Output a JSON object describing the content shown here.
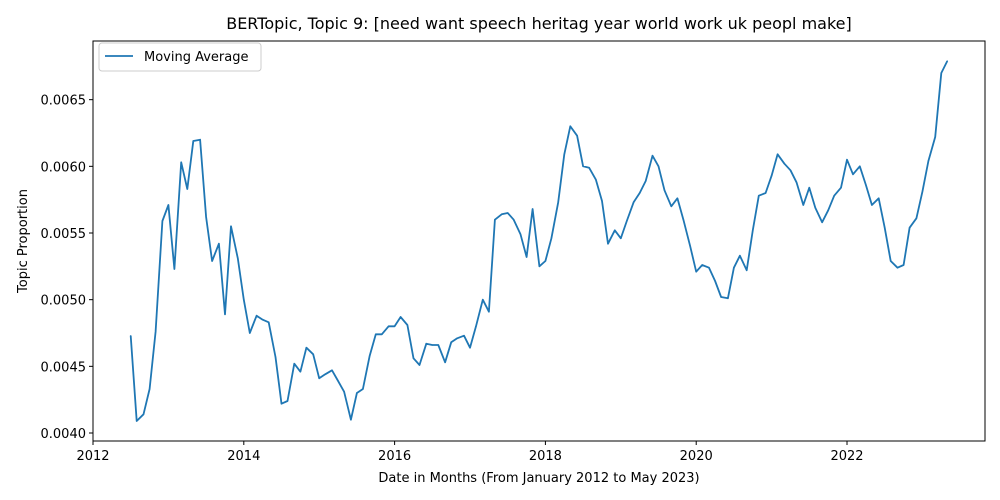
{
  "chart_data": {
    "type": "line",
    "title": "BERTopic, Topic 9: [need want speech heritag year world work uk peopl make]",
    "xlabel": "Date in Months (From January 2012 to May 2023)",
    "ylabel": "Topic Proportion",
    "xlim": [
      2012.0,
      2023.83
    ],
    "ylim": [
      0.00394,
      0.00694
    ],
    "xticks": [
      2012,
      2014,
      2016,
      2018,
      2020,
      2022
    ],
    "xtick_labels": [
      "2012",
      "2014",
      "2016",
      "2018",
      "2020",
      "2022"
    ],
    "yticks": [
      0.004,
      0.0045,
      0.005,
      0.0055,
      0.006,
      0.0065
    ],
    "ytick_labels": [
      "0.0040",
      "0.0045",
      "0.0050",
      "0.0055",
      "0.0060",
      "0.0065"
    ],
    "grid": false,
    "legend_position": "top-left",
    "colors": {
      "series": "#1f77b4"
    },
    "series": [
      {
        "name": "Moving Average",
        "x": [
          2012.5,
          2012.58,
          2012.67,
          2012.75,
          2012.83,
          2012.92,
          2013.0,
          2013.08,
          2013.17,
          2013.25,
          2013.33,
          2013.42,
          2013.5,
          2013.58,
          2013.67,
          2013.75,
          2013.83,
          2013.92,
          2014.0,
          2014.08,
          2014.17,
          2014.25,
          2014.33,
          2014.42,
          2014.5,
          2014.58,
          2014.67,
          2014.75,
          2014.83,
          2014.92,
          2015.0,
          2015.08,
          2015.17,
          2015.25,
          2015.33,
          2015.42,
          2015.5,
          2015.58,
          2015.67,
          2015.75,
          2015.83,
          2015.92,
          2016.0,
          2016.08,
          2016.17,
          2016.25,
          2016.33,
          2016.42,
          2016.5,
          2016.58,
          2016.67,
          2016.75,
          2016.83,
          2016.92,
          2017.0,
          2017.08,
          2017.17,
          2017.25,
          2017.33,
          2017.42,
          2017.5,
          2017.58,
          2017.67,
          2017.75,
          2017.83,
          2017.92,
          2018.0,
          2018.08,
          2018.17,
          2018.25,
          2018.33,
          2018.42,
          2018.5,
          2018.58,
          2018.67,
          2018.75,
          2018.83,
          2018.92,
          2019.0,
          2019.08,
          2019.17,
          2019.25,
          2019.33,
          2019.42,
          2019.5,
          2019.58,
          2019.67,
          2019.75,
          2019.83,
          2019.92,
          2020.0,
          2020.08,
          2020.17,
          2020.25,
          2020.33,
          2020.42,
          2020.5,
          2020.58,
          2020.67,
          2020.75,
          2020.83,
          2020.92,
          2021.0,
          2021.08,
          2021.17,
          2021.25,
          2021.33,
          2021.42,
          2021.5,
          2021.58,
          2021.67,
          2021.75,
          2021.83,
          2021.92,
          2022.0,
          2022.08,
          2022.17,
          2022.25,
          2022.33,
          2022.42,
          2022.5,
          2022.58,
          2022.67,
          2022.75,
          2022.83,
          2022.92,
          2023.0,
          2023.08,
          2023.17,
          2023.25,
          2023.33
        ],
        "y": [
          0.00473,
          0.00409,
          0.00414,
          0.00433,
          0.00476,
          0.00559,
          0.00571,
          0.00523,
          0.00603,
          0.00583,
          0.00619,
          0.0062,
          0.00562,
          0.00529,
          0.00542,
          0.00489,
          0.00555,
          0.00531,
          0.005,
          0.00475,
          0.00488,
          0.00485,
          0.00483,
          0.00457,
          0.00422,
          0.00424,
          0.00452,
          0.00446,
          0.00464,
          0.00459,
          0.00441,
          0.00444,
          0.00447,
          0.00439,
          0.00431,
          0.0041,
          0.0043,
          0.00433,
          0.00458,
          0.00474,
          0.00474,
          0.0048,
          0.0048,
          0.00487,
          0.00481,
          0.00456,
          0.00451,
          0.00467,
          0.00466,
          0.00466,
          0.00453,
          0.00468,
          0.00471,
          0.00473,
          0.00464,
          0.0048,
          0.005,
          0.00491,
          0.0056,
          0.00564,
          0.00565,
          0.0056,
          0.00549,
          0.00532,
          0.00568,
          0.00525,
          0.00529,
          0.00546,
          0.00573,
          0.00609,
          0.0063,
          0.00623,
          0.006,
          0.00599,
          0.0059,
          0.00574,
          0.00542,
          0.00552,
          0.00546,
          0.00559,
          0.00573,
          0.0058,
          0.00589,
          0.00608,
          0.006,
          0.00582,
          0.0057,
          0.00576,
          0.0056,
          0.0054,
          0.00521,
          0.00526,
          0.00524,
          0.00514,
          0.00502,
          0.00501,
          0.00524,
          0.00533,
          0.00522,
          0.00552,
          0.00578,
          0.0058,
          0.00593,
          0.00609,
          0.00602,
          0.00597,
          0.00588,
          0.00571,
          0.00584,
          0.00569,
          0.00558,
          0.00567,
          0.00578,
          0.00584,
          0.00605,
          0.00594,
          0.006,
          0.00586,
          0.00571,
          0.00576,
          0.00554,
          0.00529,
          0.00524,
          0.00526,
          0.00554,
          0.00561,
          0.00581,
          0.00604,
          0.00622,
          0.0067,
          0.00679
        ]
      }
    ]
  }
}
